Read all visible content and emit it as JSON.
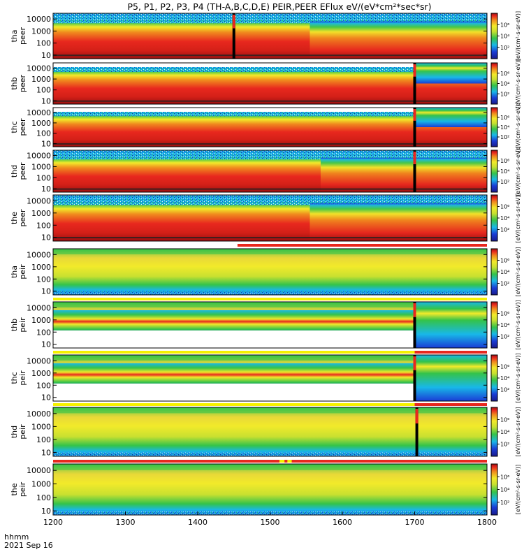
{
  "title": "P5, P1, P2, P3, P4 (TH-A,B,C,D,E) PEIR,PEER EFlux eV/(eV*cm²*sec*sr)",
  "footer": {
    "time_label": "hhmm",
    "date_label": "2021 Sep 16"
  },
  "colorbar_unit": "[eV/(cm²-s-sr-eV)]",
  "colorbar_ticks": [
    "10²",
    "10⁴",
    "10⁶"
  ],
  "colors": {
    "low": "#1a3cd6",
    "mid": "#34c34a",
    "high": "#f2ea2a",
    "peak": "#e8281e",
    "max": "#9b1010",
    "flag_yellow": "#f5f100",
    "flag_red": "#e8281e"
  },
  "chart_data": {
    "type": "heatmap",
    "xlabel": "hhmm",
    "x_ticks": [
      "1200",
      "1300",
      "1400",
      "1500",
      "1600",
      "1700",
      "1800"
    ],
    "xlim": [
      1200,
      1800
    ],
    "y_scale": "log",
    "y_ticks": [
      "10",
      "100",
      "1000",
      "10000"
    ],
    "ylim": [
      5,
      30000
    ],
    "panels": [
      {
        "probe": "tha",
        "species": "peer",
        "label": [
          "tha",
          "peer"
        ],
        "style": "electron",
        "gap": null,
        "spike": 1450
      },
      {
        "probe": "thb",
        "species": "peer",
        "label": [
          "thb",
          "peer"
        ],
        "style": "electron",
        "gap": [
          1200,
          1700
        ],
        "spike": 1700
      },
      {
        "probe": "thc",
        "species": "peer",
        "label": [
          "thc",
          "peer"
        ],
        "style": "electron",
        "gap": [
          1200,
          1700
        ],
        "spike": 1700
      },
      {
        "probe": "thd",
        "species": "peer",
        "label": [
          "thd",
          "peer"
        ],
        "style": "electron",
        "gap": null,
        "spike": 1700
      },
      {
        "probe": "the",
        "species": "peer",
        "label": [
          "the",
          "peer"
        ],
        "style": "electron",
        "gap": null,
        "spike": null
      },
      {
        "probe": "tha",
        "species": "peir",
        "label": [
          "tha",
          "peir"
        ],
        "style": "ion",
        "gap": null,
        "spike": null
      },
      {
        "probe": "thb",
        "species": "peir",
        "label": [
          "thb",
          "peir"
        ],
        "style": "ion",
        "gap": [
          1200,
          1700
        ],
        "spike": 1700
      },
      {
        "probe": "thc",
        "species": "peir",
        "label": [
          "thc",
          "peir"
        ],
        "style": "ion",
        "gap": [
          1200,
          1700
        ],
        "spike": 1700
      },
      {
        "probe": "thd",
        "species": "peir",
        "label": [
          "thd",
          "peir"
        ],
        "style": "ion",
        "gap": null,
        "spike": 1703
      },
      {
        "probe": "the",
        "species": "peir",
        "label": [
          "the",
          "peir"
        ],
        "style": "ion",
        "gap": null,
        "spike": null
      }
    ],
    "mode_bars": [
      {
        "after_panel": 0,
        "segments": []
      },
      {
        "after_panel": 1,
        "segments": []
      },
      {
        "after_panel": 2,
        "segments": []
      },
      {
        "after_panel": 3,
        "segments": []
      },
      {
        "after_panel": 4,
        "segments": [
          {
            "from": 1455,
            "to": 1800,
            "color": "red"
          }
        ]
      },
      {
        "after_panel": 5,
        "segments": [
          {
            "from": 1200,
            "to": 1800,
            "color": "yellow"
          }
        ]
      },
      {
        "after_panel": 6,
        "segments": [
          {
            "from": 1200,
            "to": 1700,
            "color": "yellow"
          },
          {
            "from": 1700,
            "to": 1800,
            "color": "red"
          }
        ]
      },
      {
        "after_panel": 7,
        "segments": [
          {
            "from": 1200,
            "to": 1700,
            "color": "yellow"
          },
          {
            "from": 1700,
            "to": 1800,
            "color": "red"
          }
        ]
      },
      {
        "after_panel": 8,
        "segments": [
          {
            "from": 1200,
            "to": 1800,
            "color": "red"
          },
          {
            "from": 1513,
            "to": 1520,
            "color": "yellow"
          },
          {
            "from": 1524,
            "to": 1530,
            "color": "yellow"
          }
        ]
      }
    ]
  }
}
